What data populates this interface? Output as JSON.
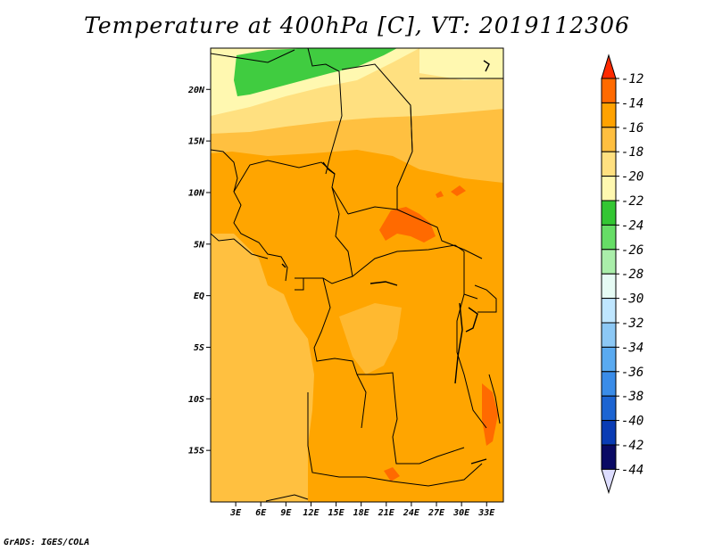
{
  "title": "Temperature at 400hPa [C], VT: 2019112306",
  "footer": "GrADS: IGES/COLA",
  "map": {
    "lon_range": [
      0,
      35
    ],
    "lat_range": [
      -20,
      24
    ],
    "lat_ticks": [
      {
        "value": 20,
        "label": "20N"
      },
      {
        "value": 15,
        "label": "15N"
      },
      {
        "value": 10,
        "label": "10N"
      },
      {
        "value": 5,
        "label": "5N"
      },
      {
        "value": 0,
        "label": "EQ"
      },
      {
        "value": -5,
        "label": "5S"
      },
      {
        "value": -10,
        "label": "10S"
      },
      {
        "value": -15,
        "label": "15S"
      }
    ],
    "lon_ticks": [
      {
        "value": 3,
        "label": "3E"
      },
      {
        "value": 6,
        "label": "6E"
      },
      {
        "value": 9,
        "label": "9E"
      },
      {
        "value": 12,
        "label": "12E"
      },
      {
        "value": 15,
        "label": "15E"
      },
      {
        "value": 18,
        "label": "18E"
      },
      {
        "value": 21,
        "label": "21E"
      },
      {
        "value": 24,
        "label": "24E"
      },
      {
        "value": 27,
        "label": "27E"
      },
      {
        "value": 30,
        "label": "30E"
      },
      {
        "value": 33,
        "label": "33E"
      }
    ],
    "field_colors": {
      "above_-14": "#ff6600",
      "-16_to_-14": "#ffa500",
      "-18_to_-16": "#ffc040",
      "-20_to_-18": "#ffe080",
      "-22_to_-20": "#fff8b0",
      "-24_to_-22": "#40cc40"
    }
  },
  "colorbar": {
    "levels": [
      "-12",
      "-14",
      "-16",
      "-18",
      "-20",
      "-22",
      "-24",
      "-26",
      "-28",
      "-30",
      "-32",
      "-34",
      "-36",
      "-38",
      "-40",
      "-42",
      "-44"
    ],
    "colors": [
      "#ff2a00",
      "#ff6a00",
      "#ffa200",
      "#ffbf40",
      "#ffe080",
      "#fff8b0",
      "#33c633",
      "#66dd66",
      "#aaeeaa",
      "#e6fbf4",
      "#bfe6ff",
      "#8cc8f5",
      "#5aaaf0",
      "#3a8ce8",
      "#1c64d2",
      "#0a3cb4",
      "#0a0a64",
      "#ddddff"
    ]
  }
}
